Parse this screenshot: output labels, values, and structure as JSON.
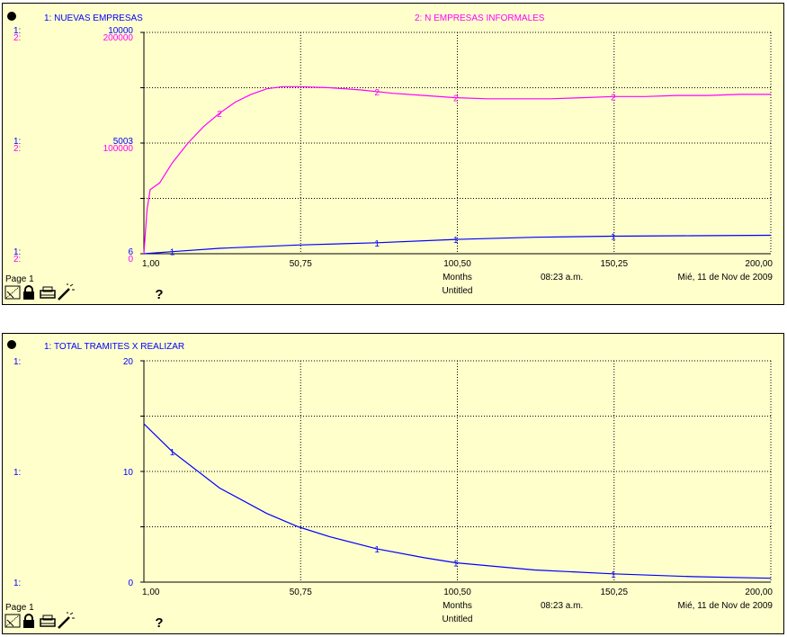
{
  "charts": [
    {
      "page_label": "Page 1",
      "time_label": "08:23 a.m.",
      "date_label": "Mié, 11 de Nov de 2009",
      "units_label": "Months",
      "model_label": "Untitled",
      "help_glyph": "?",
      "colors": {
        "series1": "#0000ff",
        "series2": "#ff00ff",
        "background": "#ffffcc"
      }
    },
    {
      "page_label": "Page 1",
      "time_label": "08:23 a.m.",
      "date_label": "Mié, 11 de Nov de 2009",
      "units_label": "Months",
      "model_label": "Untitled",
      "help_glyph": "?",
      "colors": {
        "series1": "#0000ff",
        "background": "#ffffcc"
      }
    }
  ],
  "chart_data": [
    {
      "type": "line",
      "x_ticks": [
        "1,00",
        "50,75",
        "100,50",
        "150,25",
        "200,00"
      ],
      "xlim": [
        1,
        200
      ],
      "grid": true,
      "series": [
        {
          "name": "1: NUEVAS EMPRESAS",
          "marker": "1",
          "axis": "1:",
          "ylim": [
            6,
            10000
          ],
          "y_ticks": [
            "10000",
            "5003",
            "6"
          ],
          "x": [
            1,
            10,
            25,
            50,
            75,
            100,
            125,
            150,
            175,
            200
          ],
          "y": [
            6,
            100,
            250,
            400,
            500,
            650,
            750,
            800,
            820,
            840
          ]
        },
        {
          "name": "2: N EMPRESAS INFORMALES",
          "marker": "2",
          "axis": "2:",
          "ylim": [
            0,
            200000
          ],
          "y_ticks": [
            "200000",
            "100000",
            "0"
          ],
          "x": [
            1,
            2,
            3,
            4,
            6,
            10,
            15,
            20,
            25,
            30,
            35,
            40,
            45,
            50,
            60,
            70,
            80,
            90,
            100,
            110,
            120,
            130,
            140,
            150,
            160,
            170,
            180,
            190,
            200
          ],
          "y": [
            0,
            40000,
            58000,
            60000,
            64000,
            82000,
            100000,
            115000,
            127000,
            137000,
            144000,
            149000,
            151000,
            151000,
            150000,
            148000,
            145000,
            143000,
            141000,
            140000,
            140000,
            140000,
            141000,
            142000,
            142000,
            143000,
            143000,
            144000,
            144000
          ]
        }
      ]
    },
    {
      "type": "line",
      "x_ticks": [
        "1,00",
        "50,75",
        "100,50",
        "150,25",
        "200,00"
      ],
      "xlim": [
        1,
        200
      ],
      "grid": true,
      "series": [
        {
          "name": "1: TOTAL TRAMITES X REALIZAR",
          "marker": "1",
          "axis": "1:",
          "ylim": [
            0,
            20
          ],
          "y_ticks": [
            "20",
            "10",
            "0"
          ],
          "x": [
            1,
            10,
            25,
            40,
            50,
            60,
            75,
            90,
            100,
            125,
            150,
            175,
            200
          ],
          "y": [
            14.3,
            11.8,
            8.5,
            6.2,
            5.0,
            4.1,
            3.0,
            2.2,
            1.75,
            1.1,
            0.75,
            0.5,
            0.35
          ]
        }
      ]
    }
  ]
}
